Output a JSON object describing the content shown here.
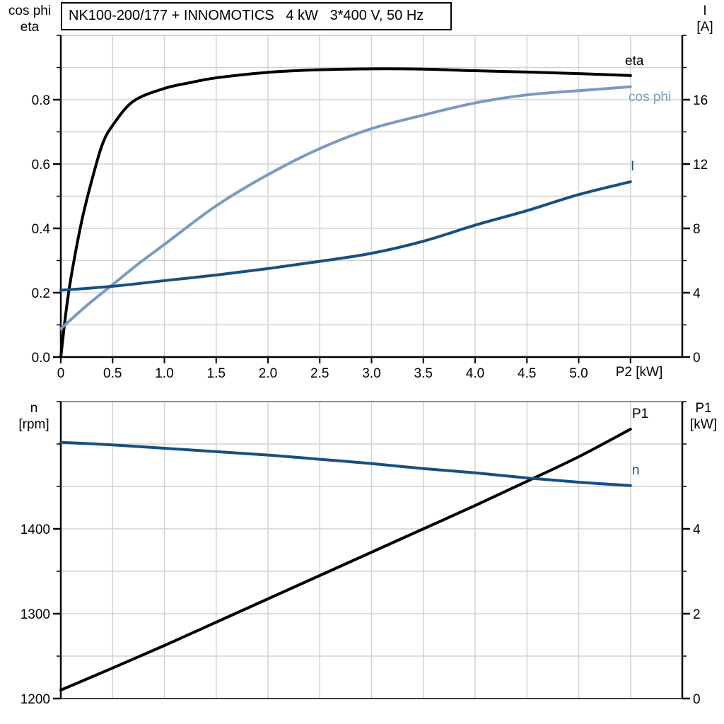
{
  "title_box": {
    "text": "NK100-200/177 + INNOMOTICS   4 kW   3*400 V, 50 Hz"
  },
  "top_chart": {
    "left_axis_title_line1": "cos phi",
    "left_axis_title_line2": "eta",
    "right_axis_title_line1": "I",
    "right_axis_title_line2": "[A]",
    "x_axis_label": "P2 [kW]",
    "curve_labels": {
      "eta": "eta",
      "cos_phi": "cos phi",
      "current": "I"
    }
  },
  "bottom_chart": {
    "left_axis_title_line1": "n",
    "left_axis_title_line2": "[rpm]",
    "right_axis_title_line1": "P1",
    "right_axis_title_line2": "[kW]",
    "curve_labels": {
      "p1": "P1",
      "n": "n"
    }
  },
  "colors": {
    "black": "#000000",
    "light_blue": "#7b9ac0",
    "dark_blue": "#17507f",
    "grid": "#d2d2d2",
    "border_gray": "#8c8c8c",
    "white": "#ffffff"
  },
  "chart_data": [
    {
      "type": "line",
      "title": "NK100-200/177 + INNOMOTICS 4 kW 3*400 V, 50 Hz",
      "xlabel": "P2 [kW]",
      "ylabel_left": "cos phi / eta",
      "ylabel_right": "I [A]",
      "xlim": [
        0,
        6
      ],
      "ylim_left": [
        0,
        1.0
      ],
      "ylim_right": [
        0,
        20
      ],
      "x_grid_step": 0.5,
      "grid": true,
      "legend_position": "right-inline",
      "x_tick_values": [
        0,
        0.5,
        1,
        1.5,
        2,
        2.5,
        3,
        3.5,
        4,
        4.5,
        5,
        5.5
      ],
      "x_tick_labels": [
        "0",
        "0.5",
        "1.0",
        "1.5",
        "2.0",
        "2.5",
        "3.0",
        "3.5",
        "4.0",
        "4.5",
        "5.0",
        ""
      ],
      "left_minor_step": 0.1,
      "left_major_ticks": [
        {
          "v": 0.0,
          "label": "0.0"
        },
        {
          "v": 0.2,
          "label": "0.2"
        },
        {
          "v": 0.4,
          "label": "0.4"
        },
        {
          "v": 0.6,
          "label": "0.6"
        },
        {
          "v": 0.8,
          "label": "0.8"
        }
      ],
      "right_minor_step": 2,
      "right_major_ticks": [
        {
          "v": 0,
          "label": "0"
        },
        {
          "v": 4,
          "label": "4"
        },
        {
          "v": 8,
          "label": "8"
        },
        {
          "v": 12,
          "label": "12"
        },
        {
          "v": 16,
          "label": "16"
        }
      ],
      "series": [
        {
          "name": "eta",
          "axis": "left",
          "color_key": "black",
          "points": [
            [
              0,
              0
            ],
            [
              0.05,
              0.14
            ],
            [
              0.1,
              0.25
            ],
            [
              0.2,
              0.42
            ],
            [
              0.3,
              0.55
            ],
            [
              0.4,
              0.66
            ],
            [
              0.5,
              0.72
            ],
            [
              0.7,
              0.795
            ],
            [
              1.0,
              0.835
            ],
            [
              1.25,
              0.853
            ],
            [
              1.5,
              0.868
            ],
            [
              2.0,
              0.885
            ],
            [
              2.5,
              0.893
            ],
            [
              3.0,
              0.896
            ],
            [
              3.5,
              0.895
            ],
            [
              4.0,
              0.89
            ],
            [
              4.5,
              0.886
            ],
            [
              5.0,
              0.881
            ],
            [
              5.5,
              0.875
            ]
          ]
        },
        {
          "name": "cos phi",
          "axis": "left",
          "color_key": "light_blue",
          "points": [
            [
              0,
              0.088
            ],
            [
              0.25,
              0.16
            ],
            [
              0.5,
              0.225
            ],
            [
              0.75,
              0.29
            ],
            [
              1.0,
              0.35
            ],
            [
              1.5,
              0.47
            ],
            [
              2.0,
              0.567
            ],
            [
              2.5,
              0.648
            ],
            [
              3.0,
              0.71
            ],
            [
              3.5,
              0.752
            ],
            [
              4.0,
              0.79
            ],
            [
              4.5,
              0.815
            ],
            [
              5.0,
              0.828
            ],
            [
              5.5,
              0.84
            ]
          ]
        },
        {
          "name": "I",
          "axis": "right",
          "color_key": "dark_blue",
          "points": [
            [
              0,
              4.15
            ],
            [
              0.5,
              4.4
            ],
            [
              1.0,
              4.75
            ],
            [
              1.5,
              5.1
            ],
            [
              2.0,
              5.5
            ],
            [
              2.5,
              5.95
            ],
            [
              3.0,
              6.45
            ],
            [
              3.5,
              7.2
            ],
            [
              4.0,
              8.2
            ],
            [
              4.5,
              9.1
            ],
            [
              5.0,
              10.1
            ],
            [
              5.5,
              10.9
            ]
          ]
        }
      ]
    },
    {
      "type": "line",
      "title": "",
      "xlabel": "P2 [kW]",
      "ylabel_left": "n [rpm]",
      "ylabel_right": "P1 [kW]",
      "xlim": [
        0,
        6
      ],
      "ylim_left": [
        1200,
        1550
      ],
      "ylim_right": [
        0,
        7
      ],
      "x_grid_step": 0.5,
      "grid": true,
      "legend_position": "right-inline",
      "x_tick_values": [],
      "x_tick_labels": [],
      "left_minor_step": 50,
      "left_major_ticks": [
        {
          "v": 1200,
          "label": "1200"
        },
        {
          "v": 1300,
          "label": "1300"
        },
        {
          "v": 1400,
          "label": "1400"
        }
      ],
      "right_minor_step": 1,
      "right_major_ticks": [
        {
          "v": 0,
          "label": "0"
        },
        {
          "v": 2,
          "label": "2"
        },
        {
          "v": 4,
          "label": "4"
        }
      ],
      "series": [
        {
          "name": "P1",
          "axis": "right",
          "color_key": "black",
          "points": [
            [
              0,
              0.2
            ],
            [
              0.5,
              0.72
            ],
            [
              1.0,
              1.25
            ],
            [
              1.5,
              1.8
            ],
            [
              2.0,
              2.35
            ],
            [
              2.5,
              2.9
            ],
            [
              3.0,
              3.45
            ],
            [
              3.5,
              4.0
            ],
            [
              4.0,
              4.55
            ],
            [
              4.5,
              5.12
            ],
            [
              5.0,
              5.7
            ],
            [
              5.5,
              6.35
            ]
          ]
        },
        {
          "name": "n",
          "axis": "left",
          "color_key": "dark_blue",
          "points": [
            [
              0,
              1502
            ],
            [
              0.5,
              1499
            ],
            [
              1.0,
              1495
            ],
            [
              1.5,
              1491
            ],
            [
              2.0,
              1487
            ],
            [
              2.5,
              1482
            ],
            [
              3.0,
              1477
            ],
            [
              3.5,
              1471
            ],
            [
              4.0,
              1466
            ],
            [
              4.5,
              1460
            ],
            [
              5.0,
              1455
            ],
            [
              5.5,
              1451
            ]
          ]
        }
      ]
    }
  ]
}
